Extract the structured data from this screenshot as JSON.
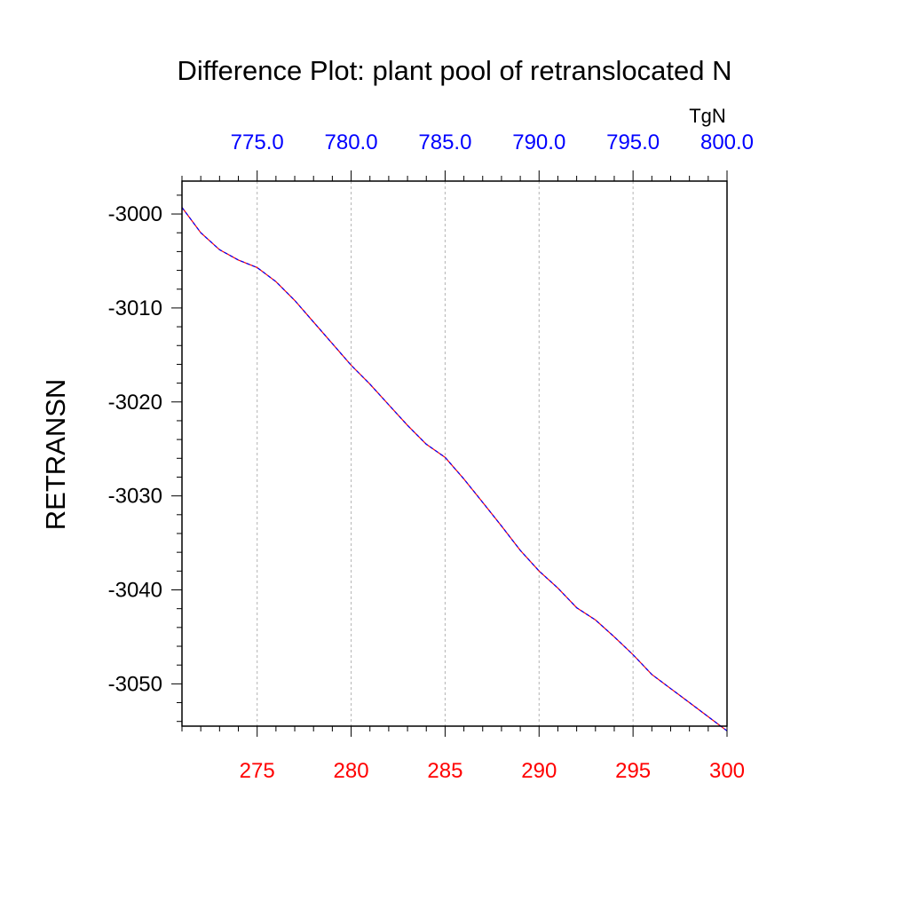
{
  "chart_data": {
    "type": "line",
    "title": "Difference Plot: plant pool of retranslocated N",
    "ylabel": "RETRANSN",
    "top_axis_unit": "TgN",
    "xlim": [
      271,
      300
    ],
    "ylim": [
      -3054.5,
      -2996.5
    ],
    "x_ticks": [
      275,
      280,
      285,
      290,
      295,
      300
    ],
    "x_tick_labels": [
      "275",
      "280",
      "285",
      "290",
      "295",
      "300"
    ],
    "x_tick_color": "#ff0000",
    "top_ticks": [
      275,
      280,
      285,
      290,
      295,
      300
    ],
    "top_tick_labels": [
      "775.0",
      "780.0",
      "785.0",
      "790.0",
      "795.0",
      "800.0"
    ],
    "top_tick_color": "#0000ff",
    "y_ticks": [
      -3000,
      -3010,
      -3020,
      -3030,
      -3040,
      -3050
    ],
    "y_tick_labels": [
      "-3000",
      "-3010",
      "-3020",
      "-3030",
      "-3040",
      "-3050"
    ],
    "grid": "vertical dashed at major x ticks",
    "series": [
      {
        "colors": [
          "#ff0000",
          "#0000ff"
        ],
        "x": [
          271,
          272,
          273,
          274,
          275,
          276,
          277,
          278,
          279,
          280,
          281,
          282,
          283,
          284,
          285,
          286,
          287,
          288,
          289,
          290,
          291,
          292,
          293,
          294,
          295,
          296,
          297,
          298,
          299,
          300
        ],
        "y": [
          -2999.3,
          -3002.0,
          -3003.8,
          -3004.9,
          -3005.7,
          -3007.2,
          -3009.2,
          -3011.5,
          -3013.8,
          -3016.1,
          -3018.1,
          -3020.3,
          -3022.5,
          -3024.5,
          -3025.9,
          -3028.2,
          -3030.7,
          -3033.2,
          -3035.8,
          -3038.0,
          -3039.8,
          -3041.9,
          -3043.2,
          -3045.0,
          -3046.9,
          -3049.0,
          -3050.5,
          -3052.0,
          -3053.5,
          -3055.0
        ]
      }
    ]
  }
}
